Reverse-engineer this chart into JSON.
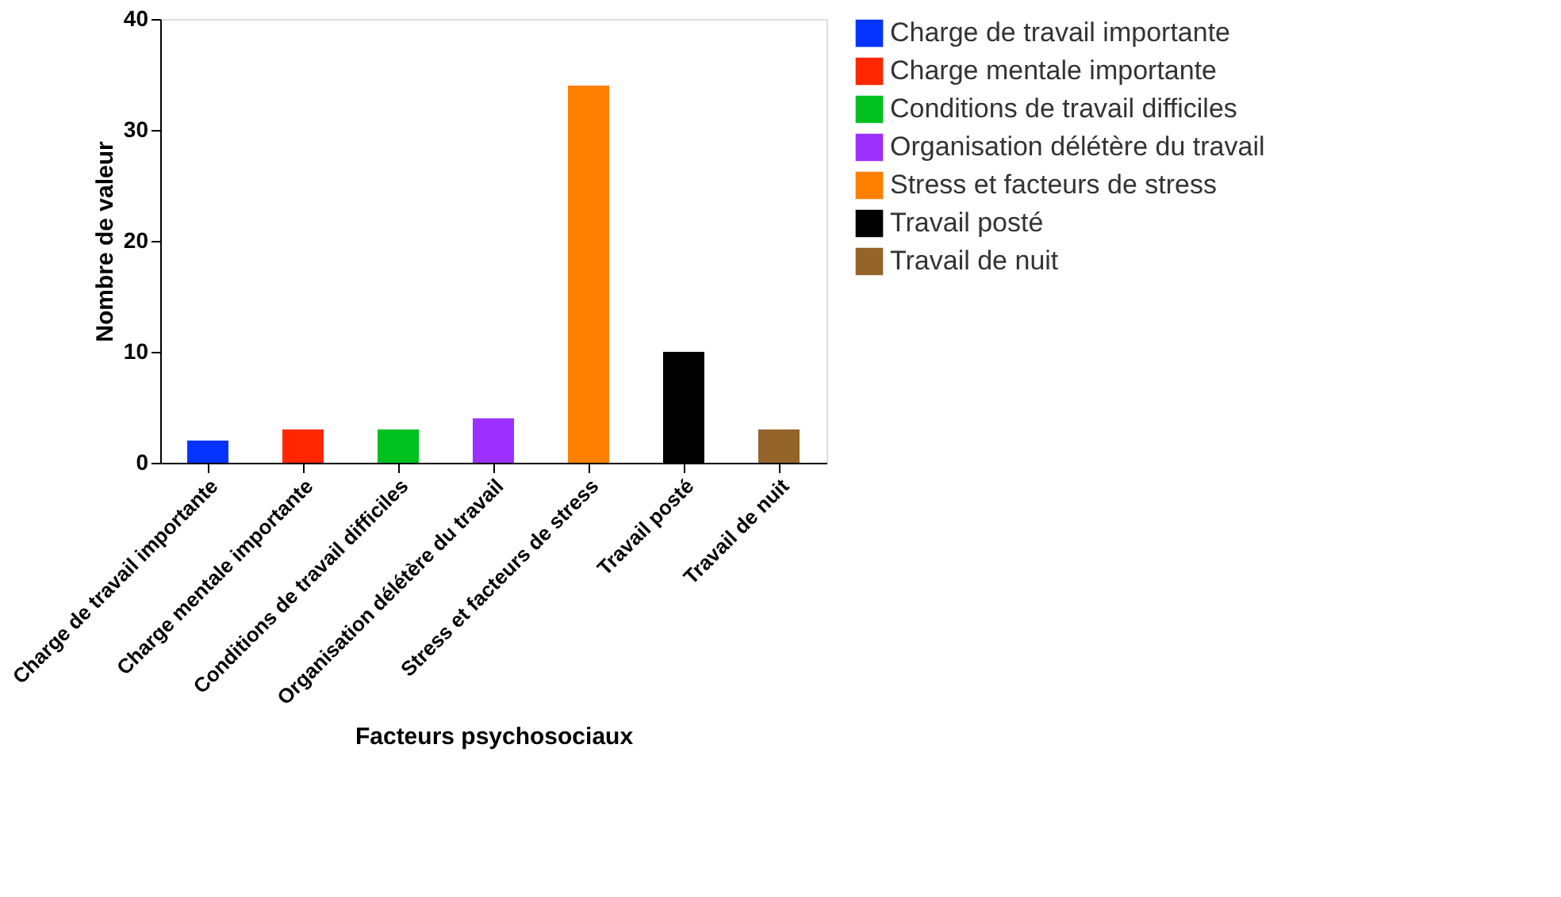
{
  "chart_data": {
    "type": "bar",
    "categories": [
      "Charge de travail importante",
      "Charge mentale importante",
      "Conditions de travail difficiles",
      "Organisation délétère du travail",
      "Stress et facteurs de stress",
      "Travail posté",
      "Travail de nuit"
    ],
    "series": [
      {
        "name": "Charge de travail importante",
        "color": "#0433ff",
        "values": [
          2,
          null,
          null,
          null,
          null,
          null,
          null
        ]
      },
      {
        "name": "Charge mentale importante",
        "color": "#ff2600",
        "values": [
          null,
          3,
          null,
          null,
          null,
          null,
          null
        ]
      },
      {
        "name": "Conditions de travail difficiles",
        "color": "#00c020",
        "values": [
          null,
          null,
          3,
          null,
          null,
          null,
          null
        ]
      },
      {
        "name": "Organisation délétère du travail",
        "color": "#9b30ff",
        "values": [
          null,
          null,
          null,
          4,
          null,
          null,
          null
        ]
      },
      {
        "name": "Stress et facteurs de stress",
        "color": "#ff8000",
        "values": [
          null,
          null,
          null,
          null,
          34,
          null,
          null
        ]
      },
      {
        "name": "Travail posté",
        "color": "#000000",
        "values": [
          null,
          null,
          null,
          null,
          null,
          10,
          null
        ]
      },
      {
        "name": "Travail de nuit",
        "color": "#94642a",
        "values": [
          null,
          null,
          null,
          null,
          null,
          null,
          3
        ]
      }
    ],
    "xlabel": "Facteurs psychosociaux",
    "ylabel": "Nombre de valeur",
    "ylim": [
      0,
      40
    ],
    "yticks": [
      0,
      10,
      20,
      30,
      40
    ],
    "grid": false,
    "legend": "right"
  }
}
